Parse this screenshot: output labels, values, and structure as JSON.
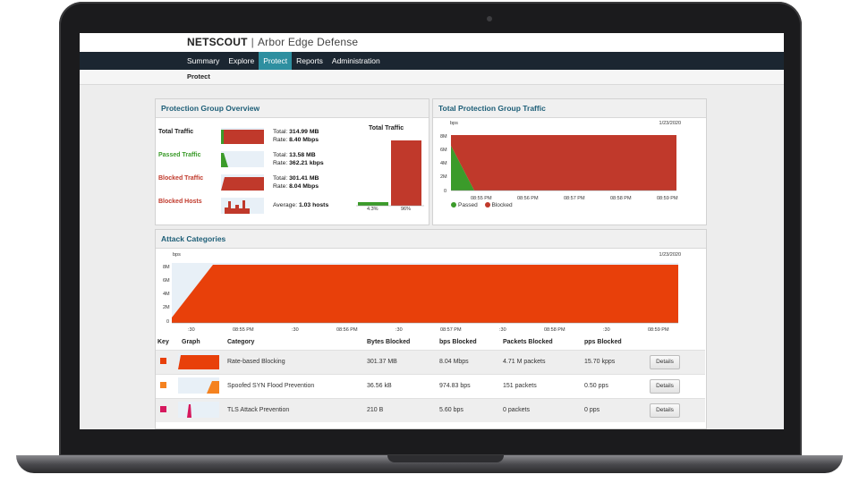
{
  "brand": {
    "name": "NETSCOUT",
    "separator": "|",
    "product": "Arbor Edge Defense"
  },
  "nav": {
    "items": [
      "Summary",
      "Explore",
      "Protect",
      "Reports",
      "Administration"
    ],
    "active": "Protect"
  },
  "breadcrumb": "Protect",
  "overview": {
    "title": "Protection Group Overview",
    "rows": [
      {
        "label": "Total Traffic",
        "color": "#222222",
        "line1_prefix": "Total:",
        "line1_value": "314.99 MB",
        "line2_prefix": "Rate:",
        "line2_value": "8.40 Mbps"
      },
      {
        "label": "Passed Traffic",
        "color": "#3b9b2a",
        "line1_prefix": "Total:",
        "line1_value": "13.58 MB",
        "line2_prefix": "Rate:",
        "line2_value": "362.21 kbps"
      },
      {
        "label": "Blocked Traffic",
        "color": "#c0392b",
        "line1_prefix": "Total:",
        "line1_value": "301.41 MB",
        "line2_prefix": "Rate:",
        "line2_value": "8.04 Mbps"
      },
      {
        "label": "Blocked Hosts",
        "color": "#c0392b",
        "line1_prefix": "Average:",
        "line1_value": "1.03 hosts",
        "line2_prefix": "",
        "line2_value": ""
      }
    ],
    "total_traffic": {
      "title": "Total Traffic",
      "passed_pct": "4.3%",
      "blocked_pct": "96%",
      "passed_value": 4.3,
      "blocked_value": 96
    }
  },
  "protection_traffic": {
    "title": "Total Protection Group Traffic",
    "unit": "bps",
    "date": "1/23/2020",
    "y_ticks": [
      "8M",
      "6M",
      "4M",
      "2M",
      "0"
    ],
    "x_ticks": [
      "08:55 PM",
      "08:56 PM",
      "08:57 PM",
      "08:58 PM",
      "08:59 PM"
    ],
    "legend": [
      {
        "name": "Passed",
        "color": "#3b9b2a"
      },
      {
        "name": "Blocked",
        "color": "#c0392b"
      }
    ]
  },
  "attack": {
    "title": "Attack Categories",
    "unit": "bps",
    "date": "1/23/2020",
    "y_ticks": [
      "8M",
      "6M",
      "4M",
      "2M",
      "0"
    ],
    "x_ticks": [
      ":30",
      "08:55 PM",
      ":30",
      "08:56 PM",
      ":30",
      "08:57 PM",
      ":30",
      "08:58 PM",
      ":30",
      "08:59 PM"
    ],
    "columns": [
      "Key",
      "Graph",
      "Category",
      "Bytes Blocked",
      "bps Blocked",
      "Packets Blocked",
      "pps Blocked"
    ],
    "rows": [
      {
        "color": "#e8400a",
        "category": "Rate-based Blocking",
        "bytes": "301.37 MB",
        "bps": "8.04 Mbps",
        "packets": "4.71 M packets",
        "pps": "15.70 kpps",
        "action": "Details"
      },
      {
        "color": "#f5821f",
        "category": "Spoofed SYN Flood Prevention",
        "bytes": "36.56 kB",
        "bps": "974.83 bps",
        "packets": "151 packets",
        "pps": "0.50 pps",
        "action": "Details"
      },
      {
        "color": "#d6195e",
        "category": "TLS Attack Prevention",
        "bytes": "210 B",
        "bps": "5.60 bps",
        "packets": "0 packets",
        "pps": "0 pps",
        "action": "Details"
      }
    ]
  }
}
